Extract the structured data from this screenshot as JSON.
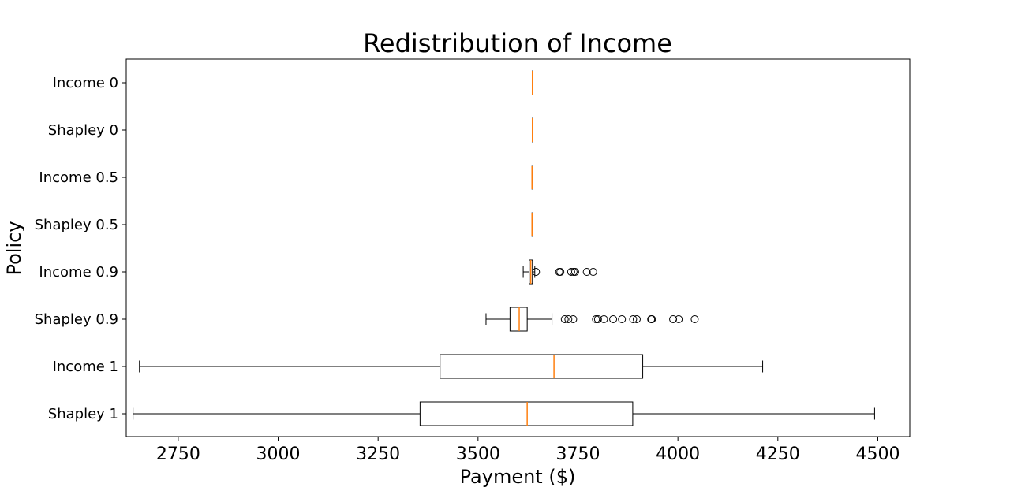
{
  "chart_data": {
    "type": "boxplot",
    "orientation": "horizontal",
    "title": "Redistribution of Income",
    "xlabel": "Payment ($)",
    "ylabel": "Policy",
    "xlim": [
      2620,
      4580
    ],
    "xticks": [
      2750,
      3000,
      3250,
      3500,
      3750,
      4000,
      4250,
      4500
    ],
    "grid": false,
    "colors": {
      "box": "#000000",
      "median": "#ff7f0e",
      "outlier": "#000000"
    },
    "categories": [
      "Income 0",
      "Shapley 0",
      "Income 0.5",
      "Shapley 0.5",
      "Income 0.9",
      "Shapley 0.9",
      "Income 1",
      "Shapley 1"
    ],
    "boxes": [
      {
        "label": "Income 0",
        "whislo": 3636,
        "q1": 3636,
        "med": 3636,
        "q3": 3636,
        "whishi": 3636,
        "fliers": []
      },
      {
        "label": "Shapley 0",
        "whislo": 3636,
        "q1": 3636,
        "med": 3636,
        "q3": 3636,
        "whishi": 3636,
        "fliers": []
      },
      {
        "label": "Income 0.5",
        "whislo": 3635,
        "q1": 3635,
        "med": 3635,
        "q3": 3635,
        "whishi": 3635,
        "fliers": []
      },
      {
        "label": "Shapley 0.5",
        "whislo": 3635,
        "q1": 3635,
        "med": 3635,
        "q3": 3635,
        "whishi": 3635,
        "fliers": []
      },
      {
        "label": "Income 0.9",
        "whislo": 3613,
        "q1": 3628,
        "med": 3632,
        "q3": 3636,
        "whishi": 3642,
        "fliers": [
          3645,
          3703,
          3706,
          3733,
          3739,
          3743,
          3772,
          3788
        ]
      },
      {
        "label": "Shapley 0.9",
        "whislo": 3520,
        "q1": 3580,
        "med": 3603,
        "q3": 3623,
        "whishi": 3685,
        "fliers": [
          3717,
          3726,
          3738,
          3795,
          3800,
          3815,
          3838,
          3860,
          3888,
          3897,
          3933,
          3935,
          3988,
          4002,
          4042
        ]
      },
      {
        "label": "Income 1",
        "whislo": 2653,
        "q1": 3405,
        "med": 3690,
        "q3": 3912,
        "whishi": 4212,
        "fliers": []
      },
      {
        "label": "Shapley 1",
        "whislo": 2637,
        "q1": 3355,
        "med": 3623,
        "q3": 3887,
        "whishi": 4492,
        "fliers": []
      }
    ]
  }
}
